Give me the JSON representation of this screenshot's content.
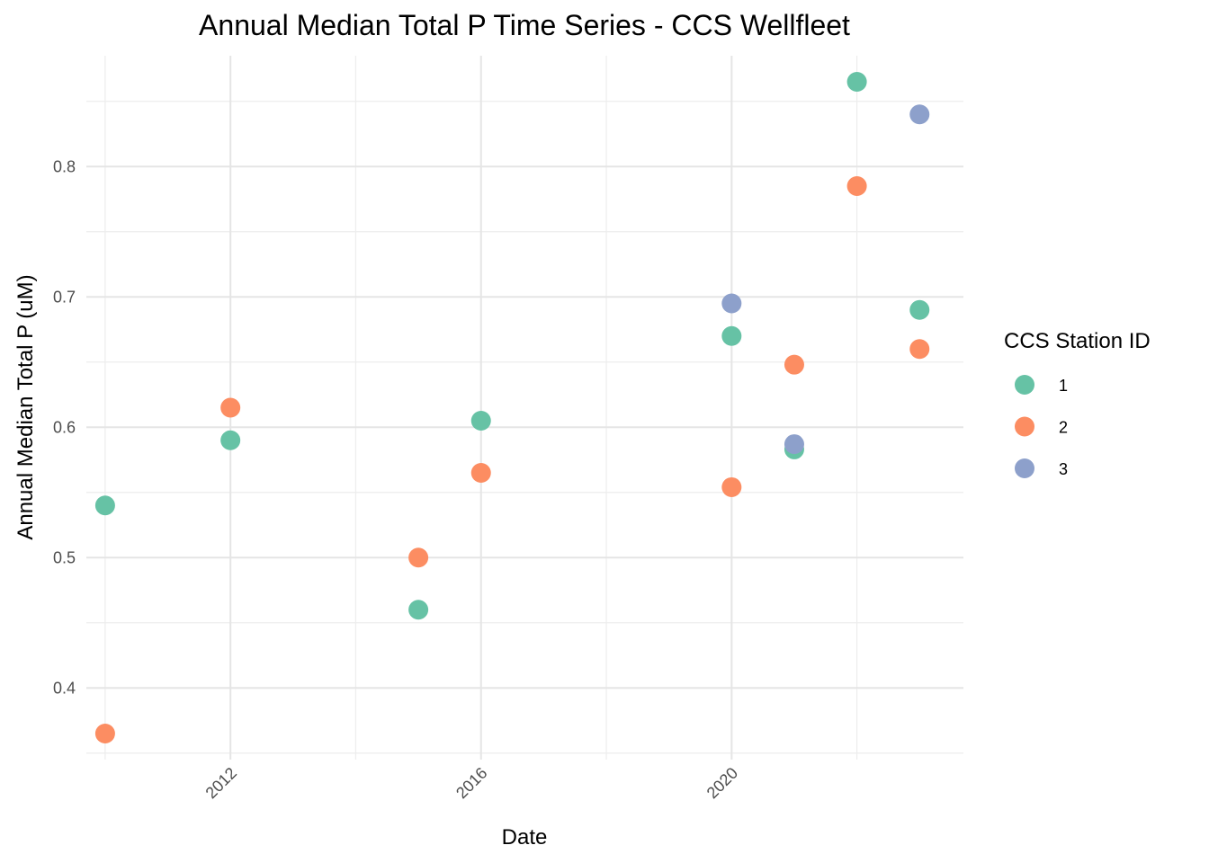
{
  "chart_data": {
    "type": "scatter",
    "title": "Annual Median Total P Time Series - CCS Wellfleet",
    "xlabel": "Date",
    "ylabel": "Annual Median Total P (uM)",
    "x_ticks": [
      "2012",
      "2016",
      "2020"
    ],
    "y_ticks": [
      "0.4",
      "0.5",
      "0.6",
      "0.7",
      "0.8"
    ],
    "xlim": [
      2009.7,
      2023.7
    ],
    "ylim": [
      0.345,
      0.885
    ],
    "grid": true,
    "legend": {
      "title": "CCS Station ID",
      "position": "right"
    },
    "series": [
      {
        "name": "1",
        "color": "#66c2a5",
        "points": [
          {
            "x": 2010,
            "y": 0.54
          },
          {
            "x": 2012,
            "y": 0.59
          },
          {
            "x": 2015,
            "y": 0.46
          },
          {
            "x": 2016,
            "y": 0.605
          },
          {
            "x": 2020,
            "y": 0.67
          },
          {
            "x": 2021,
            "y": 0.583
          },
          {
            "x": 2022,
            "y": 0.865
          },
          {
            "x": 2023,
            "y": 0.69
          }
        ]
      },
      {
        "name": "2",
        "color": "#fc8d62",
        "points": [
          {
            "x": 2010,
            "y": 0.365
          },
          {
            "x": 2012,
            "y": 0.615
          },
          {
            "x": 2015,
            "y": 0.5
          },
          {
            "x": 2016,
            "y": 0.565
          },
          {
            "x": 2020,
            "y": 0.554
          },
          {
            "x": 2021,
            "y": 0.648
          },
          {
            "x": 2022,
            "y": 0.785
          },
          {
            "x": 2023,
            "y": 0.66
          }
        ]
      },
      {
        "name": "3",
        "color": "#8da0cb",
        "points": [
          {
            "x": 2020,
            "y": 0.695
          },
          {
            "x": 2021,
            "y": 0.587
          },
          {
            "x": 2023,
            "y": 0.84
          }
        ]
      }
    ]
  }
}
